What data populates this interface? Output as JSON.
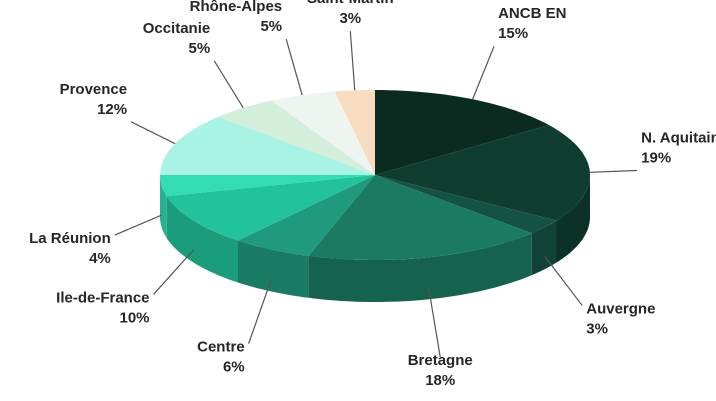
{
  "chart_data": {
    "type": "pie",
    "categories": [
      "ANCB EN",
      "N. Aquitaine",
      "Auvergne",
      "Bretagne",
      "Centre",
      "Ile-de-France",
      "La Réunion",
      "Provence",
      "Occitanie",
      "Rhône-Alpes",
      "Saint-Martin"
    ],
    "values": [
      15,
      19,
      3,
      18,
      6,
      10,
      4,
      12,
      5,
      5,
      3
    ],
    "value_labels": [
      "15%",
      "19%",
      "3%",
      "18%",
      "6%",
      "10%",
      "4%",
      "12%",
      "5%",
      "5%",
      "3%"
    ],
    "colors": [
      "#0b2a20",
      "#0f3d30",
      "#145244",
      "#1a7a62",
      "#1f9a7c",
      "#22c39a",
      "#33dcb2",
      "#a8f3e3",
      "#d4eedc",
      "#eef5f1",
      "#f8dcbf"
    ]
  }
}
